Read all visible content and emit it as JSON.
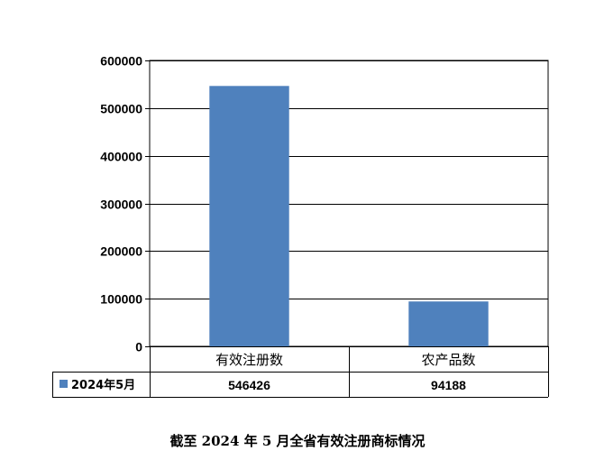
{
  "caption": "截至 2024 年 5 月全省有效注册商标情况",
  "colors": {
    "bar": "#4f81bd",
    "grid": "#000000"
  },
  "chart_data": {
    "type": "bar",
    "categories": [
      "有效注册数",
      "农产品数"
    ],
    "series": [
      {
        "name": "2024年5月",
        "values": [
          546426,
          94188
        ]
      }
    ],
    "ylim": [
      0,
      600000
    ],
    "yticks": [
      0,
      100000,
      200000,
      300000,
      400000,
      500000,
      600000
    ],
    "grid": true,
    "data_table": true,
    "legend_placement": "data-table-left"
  }
}
